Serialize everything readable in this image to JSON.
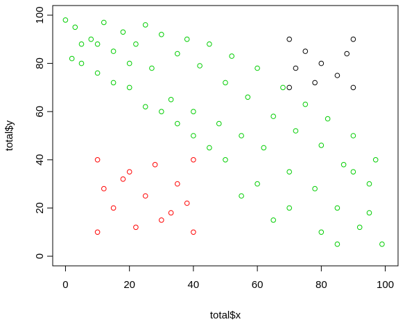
{
  "chart_data": {
    "type": "scatter",
    "xlabel": "total$x",
    "ylabel": "total$y",
    "xlim": [
      -4,
      104
    ],
    "ylim": [
      -4,
      104
    ],
    "x_ticks": [
      "0",
      "20",
      "40",
      "60",
      "80",
      "100"
    ],
    "y_ticks": [
      "0",
      "20",
      "40",
      "60",
      "80",
      "100"
    ],
    "grid": false,
    "marker": "open-circle",
    "series": [
      {
        "color": "#00cd00",
        "region": "diagonal band",
        "x_range": [
          0,
          100
        ],
        "y_range": [
          0,
          100
        ],
        "points": [
          [
            0,
            98
          ],
          [
            3,
            95
          ],
          [
            5,
            88
          ],
          [
            2,
            82
          ],
          [
            8,
            90
          ],
          [
            10,
            76
          ],
          [
            12,
            97
          ],
          [
            15,
            85
          ],
          [
            18,
            93
          ],
          [
            20,
            70
          ],
          [
            22,
            88
          ],
          [
            25,
            96
          ],
          [
            27,
            78
          ],
          [
            30,
            92
          ],
          [
            33,
            65
          ],
          [
            35,
            84
          ],
          [
            38,
            90
          ],
          [
            40,
            60
          ],
          [
            42,
            79
          ],
          [
            45,
            88
          ],
          [
            48,
            55
          ],
          [
            50,
            72
          ],
          [
            52,
            83
          ],
          [
            55,
            50
          ],
          [
            57,
            66
          ],
          [
            60,
            78
          ],
          [
            62,
            45
          ],
          [
            65,
            58
          ],
          [
            68,
            70
          ],
          [
            70,
            35
          ],
          [
            72,
            52
          ],
          [
            75,
            63
          ],
          [
            78,
            28
          ],
          [
            80,
            46
          ],
          [
            82,
            57
          ],
          [
            85,
            20
          ],
          [
            87,
            38
          ],
          [
            90,
            50
          ],
          [
            92,
            12
          ],
          [
            95,
            30
          ],
          [
            97,
            40
          ],
          [
            99,
            5
          ],
          [
            60,
            30
          ],
          [
            70,
            20
          ],
          [
            80,
            10
          ],
          [
            50,
            40
          ],
          [
            40,
            50
          ],
          [
            30,
            60
          ],
          [
            20,
            80
          ],
          [
            10,
            88
          ],
          [
            55,
            25
          ],
          [
            65,
            15
          ],
          [
            85,
            5
          ],
          [
            45,
            45
          ],
          [
            35,
            55
          ],
          [
            25,
            62
          ],
          [
            15,
            72
          ],
          [
            5,
            80
          ],
          [
            90,
            35
          ],
          [
            95,
            18
          ]
        ]
      },
      {
        "color": "#ff0000",
        "region": "square cluster",
        "x_range": [
          10,
          40
        ],
        "y_range": [
          10,
          40
        ],
        "points": [
          [
            10,
            10
          ],
          [
            10,
            40
          ],
          [
            40,
            10
          ],
          [
            40,
            40
          ],
          [
            25,
            25
          ],
          [
            15,
            20
          ],
          [
            35,
            30
          ],
          [
            20,
            35
          ],
          [
            30,
            15
          ],
          [
            12,
            28
          ],
          [
            38,
            22
          ],
          [
            22,
            12
          ],
          [
            28,
            38
          ],
          [
            18,
            32
          ],
          [
            33,
            18
          ]
        ]
      },
      {
        "color": "#000000",
        "region": "square cluster",
        "x_range": [
          70,
          90
        ],
        "y_range": [
          70,
          90
        ],
        "points": [
          [
            70,
            70
          ],
          [
            70,
            90
          ],
          [
            90,
            70
          ],
          [
            90,
            90
          ],
          [
            80,
            80
          ],
          [
            75,
            85
          ],
          [
            85,
            75
          ],
          [
            72,
            78
          ],
          [
            88,
            84
          ],
          [
            78,
            72
          ]
        ]
      }
    ]
  }
}
